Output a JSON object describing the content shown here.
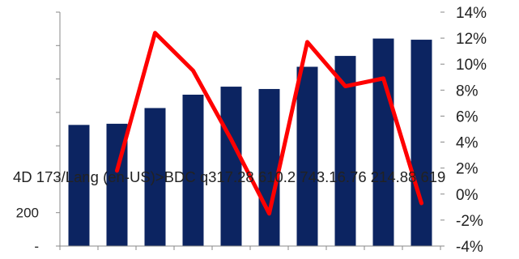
{
  "chart_data": {
    "type": "bar+line",
    "title": "",
    "categories": [
      "",
      "",
      "",
      "",
      "",
      "",
      "",
      "",
      "",
      ""
    ],
    "series": [
      {
        "type": "bar",
        "axis": "left",
        "color": "#0c2461",
        "values": [
          725,
          732,
          826,
          906,
          954,
          940,
          1073,
          1138,
          1242,
          1235
        ]
      },
      {
        "type": "line",
        "axis": "right",
        "color": "#ff0000",
        "values": [
          null,
          1.8,
          12.4,
          9.5,
          4.2,
          -1.5,
          11.7,
          8.3,
          8.9,
          -0.7
        ]
      }
    ],
    "left_axis": {
      "ylim": [
        0,
        1400
      ],
      "tick_labels": [
        "-",
        "200"
      ]
    },
    "right_axis": {
      "ylim": [
        -4,
        14
      ],
      "ticks": [
        -4,
        -2,
        0,
        2,
        4,
        6,
        8,
        10,
        12,
        14
      ],
      "tick_labels": [
        "-4%",
        "-2%",
        "0%",
        "2%",
        "4%",
        "6%",
        "8%",
        "10%",
        "12%",
        "14%"
      ]
    },
    "overlay_text": "4D 173/Lang (en-US)>BDC q317.28 610.2 743.16.76 214.88 619",
    "grid": false,
    "legend": "none"
  }
}
